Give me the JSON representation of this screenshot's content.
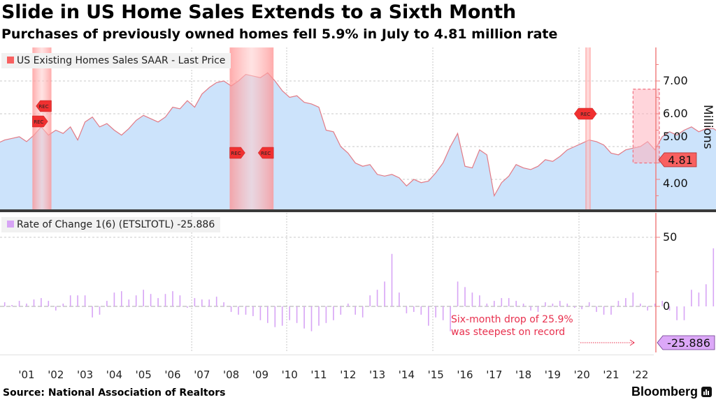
{
  "header": {
    "title": "Slide in US Home Sales Extends to a Sixth Month",
    "subtitle": "Purchases of previously owned homes fell 5.9% in July to 4.81 million rate"
  },
  "footer": {
    "source": "Source: National Association of Realtors",
    "brand": "Bloomberg"
  },
  "colors": {
    "area_fill": "#cce3fb",
    "line": "#e27a85",
    "recession": "#ff9999",
    "bars": "#d7a4f5",
    "axis": "#f08080",
    "last_label_top": "#f86060",
    "last_label_bottom": "#dca8f8",
    "annotation": "#e8304e"
  },
  "chart_data": [
    {
      "type": "area",
      "title": "US Existing Homes Sales SAAR - Last Price",
      "legend": "US Existing Homes Sales SAAR - Last Price",
      "legend_position": "top-left",
      "ylabel": "Millions",
      "ylim": [
        3.0,
        8.0
      ],
      "yticks": [
        "4.00",
        "5.00",
        "6.00",
        "7.00"
      ],
      "ytick_values": [
        4,
        5,
        6,
        7
      ],
      "last_value_label": "4.81",
      "x_start_year": 2000.0,
      "x_step_years": 0.25,
      "values": [
        5.1,
        5.2,
        5.25,
        5.3,
        5.15,
        5.35,
        5.6,
        5.35,
        5.5,
        5.4,
        5.6,
        5.2,
        5.75,
        5.9,
        5.6,
        5.7,
        5.5,
        5.35,
        5.55,
        5.8,
        5.95,
        5.85,
        5.75,
        5.9,
        6.2,
        6.15,
        6.4,
        6.2,
        6.6,
        6.8,
        6.95,
        7.0,
        6.85,
        7.0,
        7.2,
        7.15,
        7.1,
        7.25,
        7.0,
        6.7,
        6.5,
        6.55,
        6.35,
        6.3,
        6.2,
        5.5,
        5.45,
        5.0,
        4.8,
        4.5,
        4.4,
        4.45,
        4.15,
        4.1,
        4.15,
        4.05,
        3.8,
        4.0,
        3.9,
        3.95,
        4.2,
        4.5,
        5.0,
        5.4,
        4.4,
        4.35,
        4.9,
        4.75,
        3.5,
        3.9,
        4.1,
        4.45,
        4.35,
        4.3,
        4.4,
        4.6,
        4.55,
        4.7,
        4.9,
        5.0,
        5.1,
        5.2,
        5.15,
        5.05,
        4.8,
        4.75,
        4.9,
        4.95,
        5.0,
        5.15,
        4.9,
        5.3,
        5.45,
        5.35,
        5.5,
        5.6,
        5.45,
        5.55,
        5.55,
        5.4,
        5.45,
        5.5,
        5.35,
        5.3,
        5.0,
        5.35,
        5.3,
        5.45,
        5.3,
        5.6,
        5.5,
        4.5,
        4.1,
        5.9,
        6.5,
        6.6,
        6.5,
        6.0,
        5.9,
        6.0,
        6.05,
        6.3,
        6.5,
        6.0,
        5.7,
        5.3,
        4.81
      ],
      "recessions": [
        [
          2001.2,
          2001.85
        ],
        [
          2007.95,
          2009.45
        ],
        [
          2020.12,
          2020.3
        ]
      ],
      "recession_marker": "REC",
      "highlight_box": [
        2021.75,
        2022.65,
        4.5,
        6.75
      ]
    },
    {
      "type": "bar",
      "title": "Rate of Change 1(6) (ETSLTOTL) -25.886",
      "legend": "Rate of Change 1(6) (ETSLTOTL) -25.886",
      "legend_position": "top-left",
      "ylim": [
        -30,
        60
      ],
      "yticks": [
        "0",
        "50"
      ],
      "ytick_values": [
        0,
        50
      ],
      "last_value_label": "-25.886",
      "x_start_year": 2000.0,
      "x_step_years": 0.25,
      "values": [
        2,
        3,
        1,
        4,
        2,
        5,
        6,
        4,
        -3,
        2,
        8,
        8,
        8,
        -8,
        -6,
        4,
        10,
        11,
        5,
        8,
        12,
        9,
        6,
        9,
        11,
        8,
        -1,
        6,
        5,
        5,
        7,
        3,
        -4,
        -6,
        -6,
        -7,
        -10,
        -12,
        -15,
        -14,
        -10,
        -12,
        -16,
        -18,
        -14,
        -12,
        -10,
        -6,
        2,
        -6,
        -8,
        8,
        12,
        18,
        38,
        10,
        -5,
        -4,
        -6,
        -14,
        -8,
        -10,
        -18,
        18,
        14,
        10,
        8,
        2,
        4,
        6,
        6,
        4,
        2,
        -3,
        -4,
        3,
        2,
        4,
        2,
        -1,
        -2,
        3,
        -4,
        -6,
        -6,
        4,
        6,
        10,
        2,
        -3,
        2,
        4,
        -3,
        -10,
        -10,
        12,
        10,
        16,
        42,
        58,
        30,
        14,
        -6,
        -10,
        -10,
        -12,
        6,
        8,
        8,
        -6,
        -12,
        -15,
        -20,
        -25.886
      ],
      "annotation": [
        "Six-month drop of 25.9%",
        "was steepest on record"
      ]
    }
  ],
  "x_axis": {
    "tick_labels": [
      "'01",
      "'02",
      "'03",
      "'04",
      "'05",
      "'06",
      "'07",
      "'08",
      "'09",
      "'10",
      "'11",
      "'12",
      "'13",
      "'14",
      "'15",
      "'16",
      "'17",
      "'18",
      "'19",
      "'20",
      "'21",
      "'22"
    ],
    "tick_years": [
      2001,
      2002,
      2003,
      2004,
      2005,
      2006,
      2007,
      2008,
      2009,
      2010,
      2011,
      2012,
      2013,
      2014,
      2015,
      2016,
      2017,
      2018,
      2019,
      2020,
      2021,
      2022
    ]
  }
}
